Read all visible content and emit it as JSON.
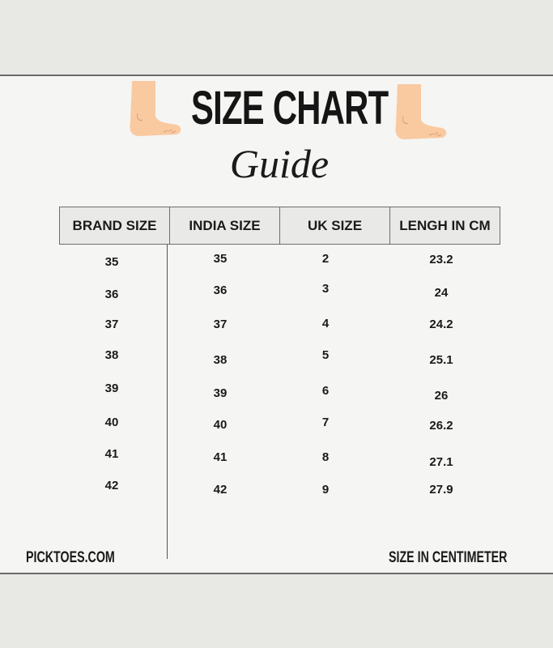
{
  "header": {
    "title": "SIZE CHART",
    "subtitle": "Guide",
    "icons": [
      "foot-icon",
      "foot-icon"
    ],
    "skin_color": "#f9c9a0"
  },
  "table": {
    "columns": [
      "BRAND SIZE",
      "INDIA SIZE",
      "UK SIZE",
      "LENGH IN CM"
    ],
    "rows": [
      [
        "35",
        "35",
        "2",
        "23.2"
      ],
      [
        "36",
        "36",
        "3",
        "24"
      ],
      [
        "37",
        "37",
        "4",
        "24.2"
      ],
      [
        "38",
        "38",
        "5",
        "25.1"
      ],
      [
        "39",
        "39",
        "6",
        "26"
      ],
      [
        "40",
        "40",
        "7",
        "26.2"
      ],
      [
        "41",
        "41",
        "8",
        "27.1"
      ],
      [
        "42",
        "42",
        "9",
        "27.9"
      ]
    ]
  },
  "footer": {
    "brand": "PICKTOES.COM",
    "note": "SIZE IN CENTIMETER"
  }
}
